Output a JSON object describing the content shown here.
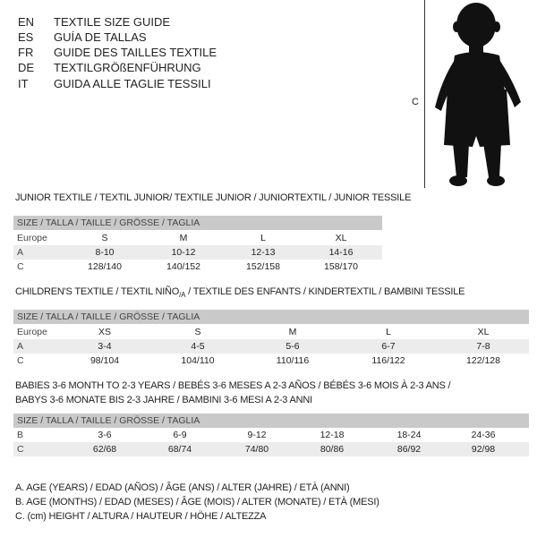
{
  "header": {
    "languages": [
      {
        "code": "EN",
        "text": "TEXTILE SIZE GUIDE"
      },
      {
        "code": "ES",
        "text": "GUÍA DE TALLAS"
      },
      {
        "code": "FR",
        "text": "GUIDE DES TAILLES TEXTILE"
      },
      {
        "code": "DE",
        "text": "TEXTILGRÖßENFÜHRUNG"
      },
      {
        "code": "IT",
        "text": "GUIDA ALLE TAGLIE TESSILI"
      }
    ],
    "figure_label": "C"
  },
  "junior": {
    "title": "JUNIOR TEXTILE / TEXTIL JUNIOR/ TEXTILE JUNIOR / JUNIORTEXTIL / JUNIOR TESSILE",
    "header": "SIZE / TALLA / TAILLE / GRÖSSE / TAGLIA",
    "rows": [
      {
        "label": "Europe",
        "values": [
          "S",
          "M",
          "L",
          "XL"
        ]
      },
      {
        "label": "A",
        "values": [
          "8-10",
          "10-12",
          "12-13",
          "14-16"
        ]
      },
      {
        "label": "C",
        "values": [
          "128/140",
          "140/152",
          "152/158",
          "158/170"
        ]
      }
    ]
  },
  "children": {
    "title_main": "CHILDREN'S TEXTILE / TEXTIL NIÑO",
    "title_sub": "/A",
    "title_rest": " / TEXTILE DES ENFANTS / KINDERTEXTIL / BAMBINI TESSILE",
    "header": "SIZE / TALLA / TAILLE / GRÖSSE / TAGLIA",
    "rows": [
      {
        "label": "Europe",
        "values": [
          "XS",
          "S",
          "M",
          "L",
          "XL"
        ]
      },
      {
        "label": "A",
        "values": [
          "3-4",
          "4-5",
          "5-6",
          "6-7",
          "7-8"
        ]
      },
      {
        "label": "C",
        "values": [
          "98/104",
          "104/110",
          "110/116",
          "116/122",
          "122/128"
        ]
      }
    ]
  },
  "babies": {
    "title_line1": "BABIES 3-6 MONTH TO 2-3 YEARS / BEBÉS 3-6 MESES A 2-3 AÑOS / BÉBÉS 3-6 MOIS À 2-3 ANS /",
    "title_line2": "BABYS 3-6 MONATE BIS 2-3 JAHRE / BAMBINI 3-6 MESI A 2-3 ANNI",
    "header": "SIZE / TALLA / TAILLE / GRÖSSE / TAGLIA",
    "rows": [
      {
        "label": "B",
        "values": [
          "3-6",
          "6-9",
          "9-12",
          "12-18",
          "18-24",
          "24-36"
        ]
      },
      {
        "label": "C",
        "values": [
          "62/68",
          "68/74",
          "74/80",
          "80/86",
          "86/92",
          "92/98"
        ]
      }
    ]
  },
  "legend": [
    "A. AGE (YEARS) / EDAD (AÑOS) / ÂGE (ANS) / ALTER (JAHRE) / ETÀ (ANNI)",
    "B. AGE (MONTHS) / EDAD (MESES) / ÂGE (MOIS) / ALTER (MONATE) / ETÀ (MESI)",
    "C. (cm) HEIGHT / ALTURA / HAUTEUR / HÖHE / ALTEZZA"
  ]
}
